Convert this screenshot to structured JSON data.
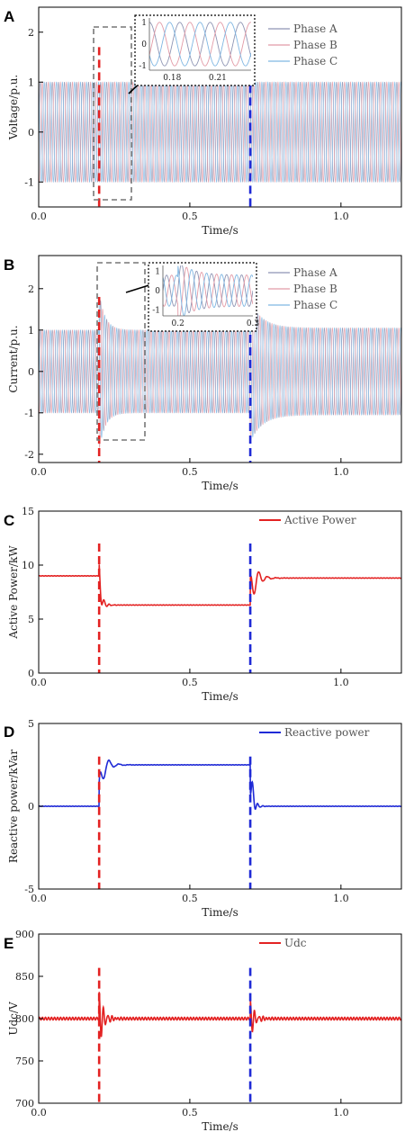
{
  "colors": {
    "phase_a": "#8e95b4",
    "phase_b": "#e29aa6",
    "phase_c": "#7fb6e2",
    "red": "#e32222",
    "blue": "#1f2ad6",
    "dashed_red": "#e32222",
    "dashed_blue": "#1f2ad6",
    "gray_box": "#777777"
  },
  "chart_data": [
    {
      "id": "A",
      "panel_letter": "A",
      "type": "line",
      "xlabel": "Time/s",
      "ylabel": "Voltage/p.u.",
      "xlim": [
        0,
        1.2
      ],
      "ylim": [
        -1.5,
        2.5
      ],
      "xticks": [
        0,
        0.5,
        1.0
      ],
      "xtick_labels": [
        "0.0",
        "0.5",
        "1.0"
      ],
      "yticks": [
        -1,
        0,
        1,
        2
      ],
      "ytick_labels": [
        "-1",
        "0",
        "1",
        "2"
      ],
      "series": [
        {
          "name": "Phase A",
          "color": "phase_a"
        },
        {
          "name": "Phase B",
          "color": "phase_b"
        },
        {
          "name": "Phase C",
          "color": "phase_c"
        }
      ],
      "signal": {
        "kind": "three_phase",
        "amplitude": 1.0,
        "frequency_hz": 50,
        "amplitude_changes": []
      },
      "events": [
        {
          "x": 0.2,
          "color": "dashed_red"
        },
        {
          "x": 0.7,
          "color": "dashed_blue"
        }
      ],
      "inset": {
        "xticks": [
          0.18,
          0.21
        ],
        "xtick_labels": [
          "0.18",
          "0.21"
        ],
        "yticks": [
          1,
          0,
          -1
        ],
        "ytick_labels": [
          "1",
          "0",
          "-1"
        ],
        "xlim": [
          0.165,
          0.232
        ],
        "ylim": [
          -1.2,
          1.2
        ],
        "zoom_x": [
          0.15,
          0.25
        ]
      }
    },
    {
      "id": "B",
      "panel_letter": "B",
      "type": "line",
      "xlabel": "Time/s",
      "ylabel": "Current/p.u.",
      "xlim": [
        0,
        1.2
      ],
      "ylim": [
        -2.2,
        2.8
      ],
      "xticks": [
        0,
        0.5,
        1.0
      ],
      "xtick_labels": [
        "0.0",
        "0.5",
        "1.0"
      ],
      "yticks": [
        -2,
        -1,
        0,
        1,
        2
      ],
      "ytick_labels": [
        "-2",
        "-1",
        "0",
        "1",
        "2"
      ],
      "series": [
        {
          "name": "Phase A",
          "color": "phase_a"
        },
        {
          "name": "Phase B",
          "color": "phase_b"
        },
        {
          "name": "Phase C",
          "color": "phase_c"
        }
      ],
      "signal": {
        "kind": "three_phase",
        "amplitude": 1.0,
        "frequency_hz": 50,
        "amplitude_changes": [
          {
            "t": 0.2,
            "peak": 1.9,
            "settle": 1.0,
            "decay": 0.02
          },
          {
            "t": 0.7,
            "peak": 1.7,
            "settle": 1.05,
            "decay": 0.04
          }
        ]
      },
      "events": [
        {
          "x": 0.2,
          "color": "dashed_red"
        },
        {
          "x": 0.7,
          "color": "dashed_blue"
        }
      ],
      "inset": {
        "xticks": [
          0.2,
          0.3
        ],
        "xtick_labels": [
          "0.2",
          "0.3"
        ],
        "yticks": [
          1,
          0,
          -1
        ],
        "ytick_labels": [
          "1",
          "0",
          "-1"
        ],
        "xlim": [
          0.18,
          0.3
        ],
        "ylim": [
          -1.3,
          1.3
        ],
        "zoom_x": [
          0.15,
          0.25
        ]
      }
    },
    {
      "id": "C",
      "panel_letter": "C",
      "type": "line",
      "xlabel": "Time/s",
      "ylabel": "Active Power/kW",
      "xlim": [
        0,
        1.2
      ],
      "ylim": [
        0,
        15
      ],
      "xticks": [
        0,
        0.5,
        1.0
      ],
      "xtick_labels": [
        "0.0",
        "0.5",
        "1.0"
      ],
      "yticks": [
        0,
        5,
        10,
        15
      ],
      "ytick_labels": [
        "0",
        "5",
        "10",
        "15"
      ],
      "series": [
        {
          "name": "Active Power",
          "color": "red"
        }
      ],
      "signal": {
        "kind": "step_response",
        "levels": [
          {
            "until": 0.2,
            "value": 9.0
          },
          {
            "until": 0.7,
            "value": 6.3
          },
          {
            "until": 1.2,
            "value": 8.8
          }
        ],
        "transients": [
          {
            "t": 0.2,
            "amp": 1.2,
            "decay": 0.012,
            "freq": 60
          },
          {
            "t": 0.7,
            "amp": 2.4,
            "decay": 0.02,
            "freq": 35
          }
        ]
      },
      "events": [
        {
          "x": 0.2,
          "color": "dashed_red"
        },
        {
          "x": 0.7,
          "color": "dashed_blue"
        }
      ]
    },
    {
      "id": "D",
      "panel_letter": "D",
      "type": "line",
      "xlabel": "Time/s",
      "ylabel": "Reactive power/kVar",
      "xlim": [
        0,
        1.2
      ],
      "ylim": [
        -5,
        5
      ],
      "xticks": [
        0,
        0.5,
        1.0
      ],
      "xtick_labels": [
        "0.0",
        "0.5",
        "1.0"
      ],
      "yticks": [
        -5,
        0,
        5
      ],
      "ytick_labels": [
        "-5",
        "0",
        "5"
      ],
      "series": [
        {
          "name": "Reactive power",
          "color": "blue"
        }
      ],
      "signal": {
        "kind": "step_response",
        "levels": [
          {
            "until": 0.2,
            "value": 0.0
          },
          {
            "until": 0.7,
            "value": 2.5
          },
          {
            "until": 1.2,
            "value": 0.0
          }
        ],
        "transients": [
          {
            "t": 0.2,
            "amp": 1.4,
            "decay": 0.02,
            "freq": 30
          },
          {
            "t": 0.7,
            "amp": -1.6,
            "decay": 0.01,
            "freq": 60
          }
        ]
      },
      "events": [
        {
          "x": 0.2,
          "color": "dashed_red"
        },
        {
          "x": 0.7,
          "color": "dashed_blue"
        }
      ]
    },
    {
      "id": "E",
      "panel_letter": "E",
      "type": "line",
      "xlabel": "Time/s",
      "ylabel": "Udc/V",
      "xlim": [
        0,
        1.2
      ],
      "ylim": [
        700,
        900
      ],
      "xticks": [
        0,
        0.5,
        1.0
      ],
      "xtick_labels": [
        "0.0",
        "0.5",
        "1.0"
      ],
      "yticks": [
        700,
        750,
        800,
        850,
        900
      ],
      "ytick_labels": [
        "700",
        "750",
        "800",
        "850",
        "900"
      ],
      "series": [
        {
          "name": "Udc",
          "color": "red"
        }
      ],
      "signal": {
        "kind": "step_response",
        "levels": [
          {
            "until": 0.2,
            "value": 800
          },
          {
            "until": 0.7,
            "value": 800
          },
          {
            "until": 1.2,
            "value": 800
          }
        ],
        "transients": [
          {
            "t": 0.2,
            "amp": 32,
            "decay": 0.015,
            "freq": 70
          },
          {
            "t": 0.7,
            "amp": 22,
            "decay": 0.015,
            "freq": 70
          }
        ]
      },
      "events": [
        {
          "x": 0.2,
          "color": "dashed_red"
        },
        {
          "x": 0.7,
          "color": "dashed_blue"
        }
      ]
    }
  ]
}
